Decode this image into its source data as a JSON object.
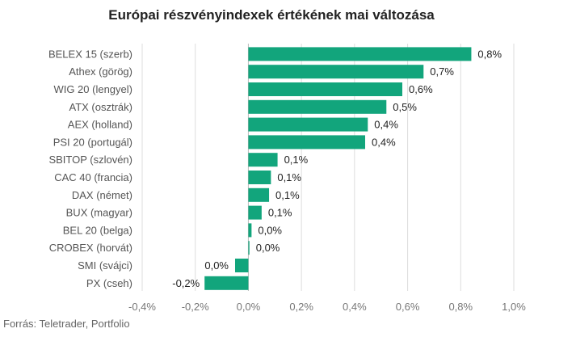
{
  "chart_data": {
    "type": "bar",
    "orientation": "horizontal",
    "title": "Európai részvényindexek értékének mai változása",
    "source": "Forrás: Teletrader, Portfolio",
    "bar_color": "#12a57c",
    "categories": [
      "BELEX 15 (szerb)",
      "Athex (görög)",
      "WIG 20 (lengyel)",
      "ATX (osztrák)",
      "AEX (holland)",
      "PSI 20 (portugál)",
      "SBITOP (szlovén)",
      "CAC 40 (francia)",
      "DAX (német)",
      "BUX (magyar)",
      "BEL 20 (belga)",
      "CROBEX (horvát)",
      "SMI (svájci)",
      "PX (cseh)"
    ],
    "values": [
      0.84,
      0.66,
      0.58,
      0.52,
      0.45,
      0.44,
      0.11,
      0.085,
      0.078,
      0.05,
      0.012,
      0.004,
      -0.05,
      -0.165
    ],
    "data_labels": [
      "0,8%",
      "0,7%",
      "0,6%",
      "0,5%",
      "0,4%",
      "0,4%",
      "0,1%",
      "0,1%",
      "0,1%",
      "0,1%",
      "0,0%",
      "0,0%",
      "0,0%",
      "-0,2%"
    ],
    "xlim": [
      -0.4,
      1.0
    ],
    "xticks": [
      -0.4,
      -0.2,
      0.0,
      0.2,
      0.4,
      0.6,
      0.8,
      1.0
    ],
    "xtick_labels": [
      "-0,4%",
      "-0,2%",
      "0,0%",
      "0,2%",
      "0,4%",
      "0,6%",
      "0,8%",
      "1,0%"
    ],
    "grid": true,
    "legend": "none"
  }
}
